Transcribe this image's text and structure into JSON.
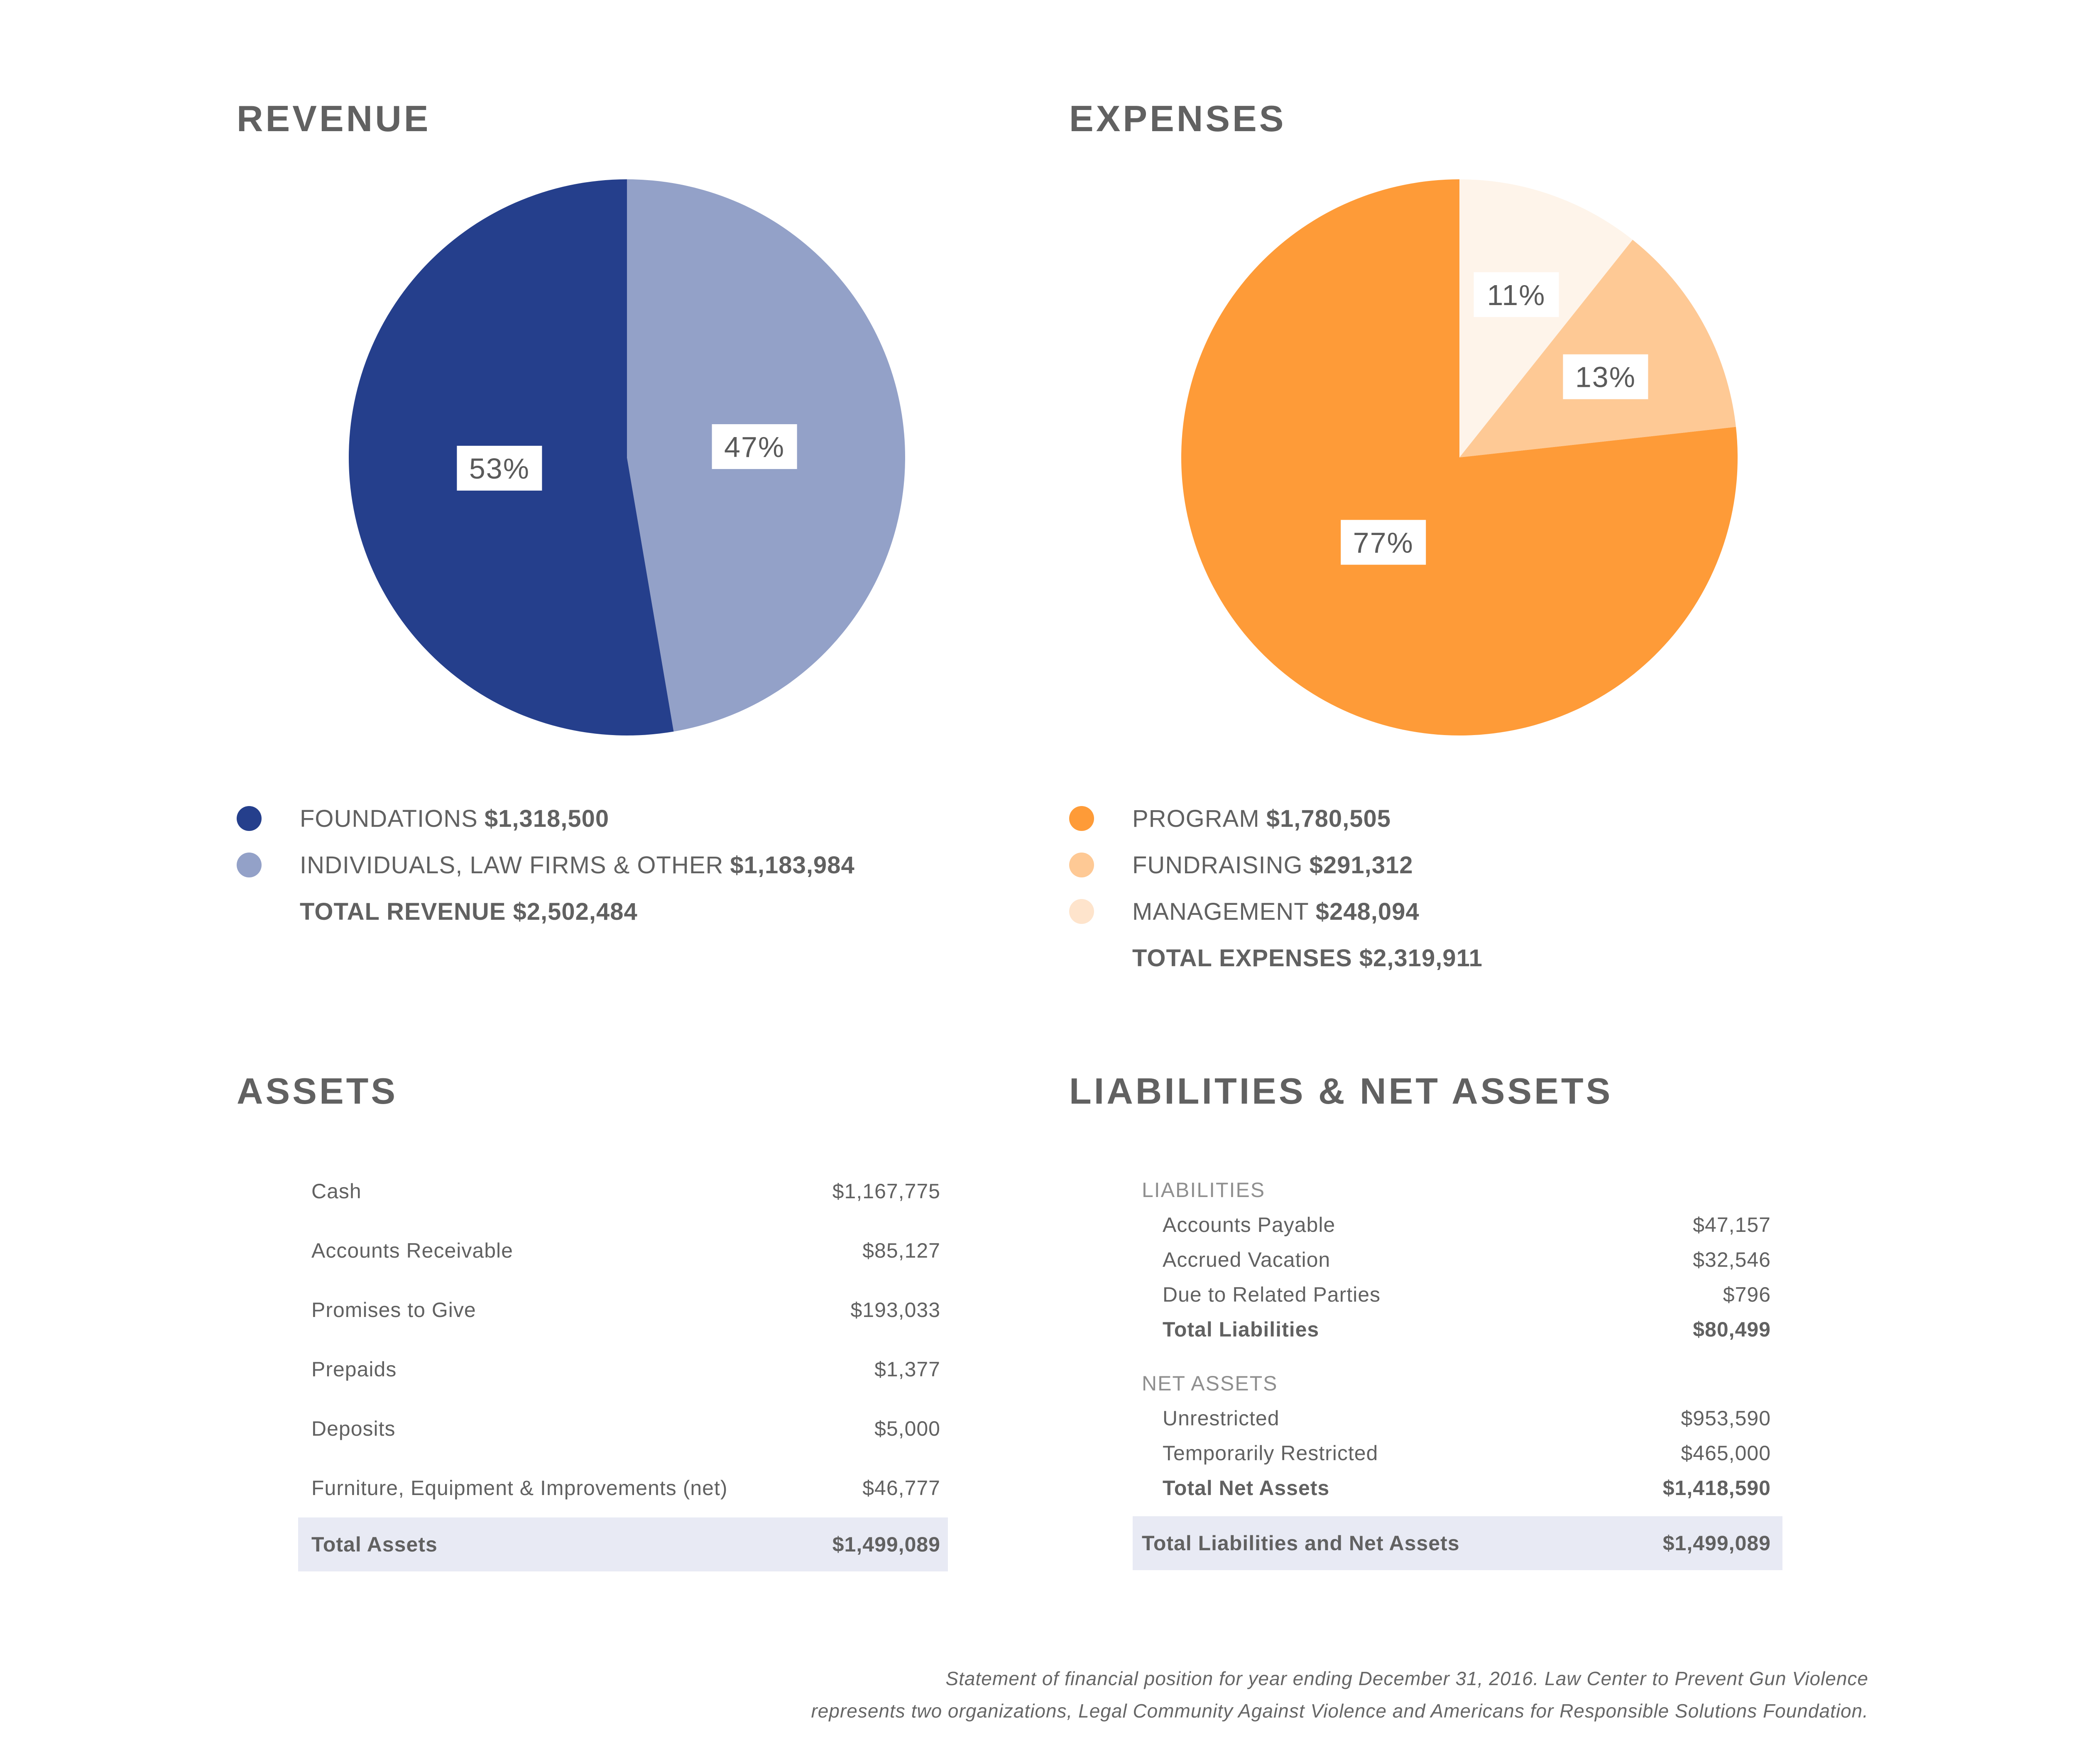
{
  "revenue": {
    "title": "REVENUE",
    "legend": [
      {
        "label": "FOUNDATIONS",
        "amount": "$1,318,500",
        "color": "#253f8c"
      },
      {
        "label": "INDIVIDUALS, LAW FIRMS & OTHER",
        "amount": "$1,183,984",
        "color": "#93a1c8"
      }
    ],
    "total": "TOTAL REVENUE $2,502,484"
  },
  "expenses": {
    "title": "EXPENSES",
    "legend": [
      {
        "label": "PROGRAM",
        "amount": "$1,780,505",
        "color": "#fe9b38"
      },
      {
        "label": "FUNDRAISING",
        "amount": "$291,312",
        "color": "#fec995"
      },
      {
        "label": "MANAGEMENT",
        "amount": "$248,094",
        "color": "#fef4ea"
      }
    ],
    "total": "TOTAL EXPENSES $2,319,911"
  },
  "chart_data": [
    {
      "type": "pie",
      "title": "REVENUE",
      "categories": [
        "FOUNDATIONS",
        "INDIVIDUALS, LAW FIRMS & OTHER"
      ],
      "values": [
        1318500,
        1183984
      ],
      "percent_labels": [
        "53%",
        "47%"
      ],
      "colors": [
        "#253f8c",
        "#93a1c8"
      ]
    },
    {
      "type": "pie",
      "title": "EXPENSES",
      "categories": [
        "PROGRAM",
        "FUNDRAISING",
        "MANAGEMENT"
      ],
      "values": [
        1780505,
        291312,
        248094
      ],
      "percent_labels": [
        "77%",
        "13%",
        "11%"
      ],
      "colors": [
        "#fe9b38",
        "#fec995",
        "#fef4ea"
      ]
    }
  ],
  "assets": {
    "title": "ASSETS",
    "rows": [
      {
        "label": "Cash",
        "value": "$1,167,775"
      },
      {
        "label": "Accounts Receivable",
        "value": "$85,127"
      },
      {
        "label": "Promises to Give",
        "value": "$193,033"
      },
      {
        "label": "Prepaids",
        "value": "$1,377"
      },
      {
        "label": "Deposits",
        "value": "$5,000"
      },
      {
        "label": "Furniture, Equipment & Improvements (net)",
        "value": "$46,777"
      }
    ],
    "total": {
      "label": "Total Assets",
      "value": "$1,499,089"
    }
  },
  "liabilities": {
    "title": "LIABILITIES & NET ASSETS",
    "liab_label": "LIABILITIES",
    "liab_rows": [
      {
        "label": "Accounts Payable",
        "value": "$47,157"
      },
      {
        "label": "Accrued Vacation",
        "value": "$32,546"
      },
      {
        "label": "Due to Related Parties",
        "value": "$796"
      }
    ],
    "liab_total": {
      "label": "Total Liabilities",
      "value": "$80,499"
    },
    "net_label": "NET ASSETS",
    "net_rows": [
      {
        "label": "Unrestricted",
        "value": "$953,590"
      },
      {
        "label": "Temporarily Restricted",
        "value": "$465,000"
      }
    ],
    "net_total": {
      "label": "Total Net Assets",
      "value": "$1,418,590"
    },
    "grand_total": {
      "label": "Total Liabilities and Net Assets",
      "value": "$1,499,089"
    }
  },
  "footnote": {
    "line1": "Statement of financial position for year ending December 31, 2016. Law Center to Prevent Gun Violence",
    "line2": "represents two organizations, Legal Community Against Violence and Americans for Responsible Solutions Foundation."
  }
}
